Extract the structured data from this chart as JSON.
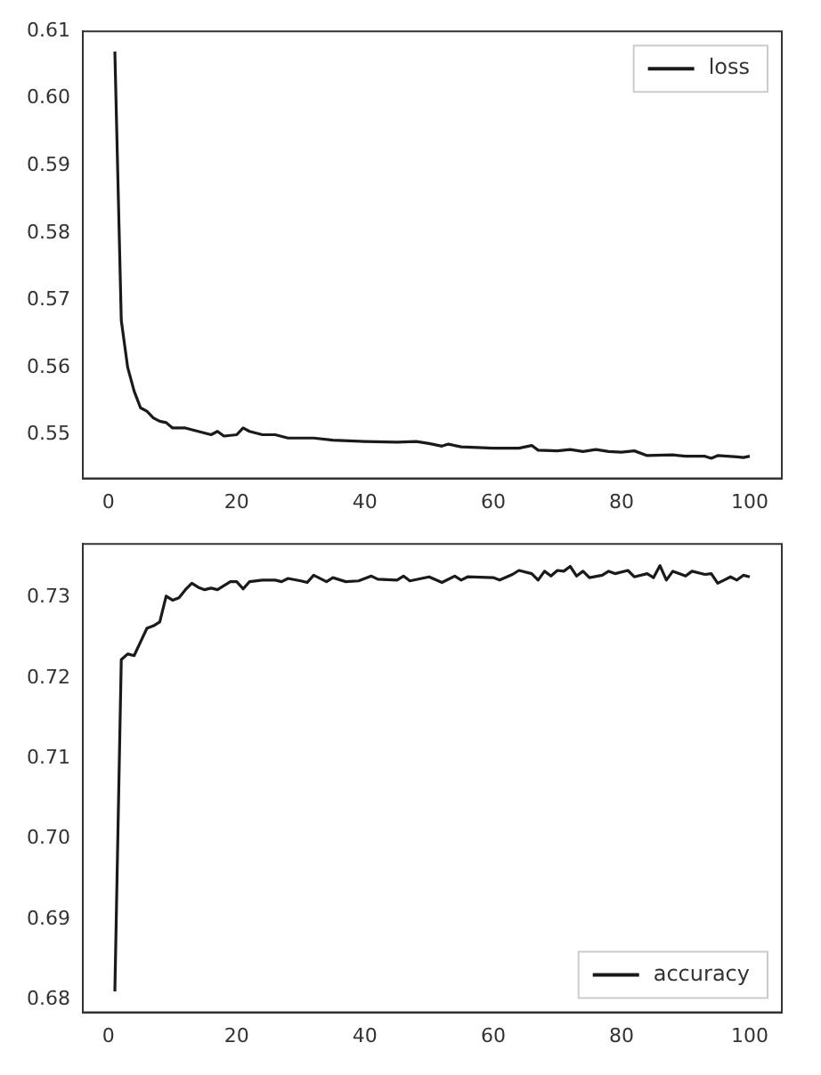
{
  "chart_data": [
    {
      "type": "line",
      "xlim": [
        -4,
        105
      ],
      "xticks": [
        0,
        20,
        40,
        60,
        80,
        100
      ],
      "ylim": [
        0.5435,
        0.61
      ],
      "yticks": [
        0.55,
        0.56,
        0.57,
        0.58,
        0.59,
        {
          "value": 0.6,
          "label": "0.60"
        },
        0.61
      ],
      "legend": "top right",
      "grid": false,
      "series": [
        {
          "name": "loss",
          "color": "#1a1a1a",
          "x": [
            1,
            2,
            3,
            4,
            5,
            6,
            7,
            8,
            9,
            10,
            12,
            14,
            16,
            17,
            18,
            20,
            21,
            22,
            24,
            26,
            28,
            30,
            32,
            35,
            40,
            45,
            48,
            50,
            52,
            53,
            55,
            60,
            64,
            66,
            67,
            70,
            72,
            74,
            76,
            78,
            80,
            82,
            84,
            88,
            90,
            93,
            94,
            95,
            98,
            99,
            100
          ],
          "values": [
            0.607,
            0.567,
            0.56,
            0.5565,
            0.554,
            0.5535,
            0.5525,
            0.552,
            0.5518,
            0.551,
            0.551,
            0.5505,
            0.55,
            0.5505,
            0.5498,
            0.55,
            0.551,
            0.5505,
            0.55,
            0.55,
            0.5495,
            0.5495,
            0.5495,
            0.5492,
            0.549,
            0.5489,
            0.549,
            0.5487,
            0.5483,
            0.5486,
            0.5482,
            0.548,
            0.548,
            0.5484,
            0.5477,
            0.5476,
            0.5478,
            0.5475,
            0.5478,
            0.5475,
            0.5474,
            0.5476,
            0.5469,
            0.547,
            0.5468,
            0.5468,
            0.5465,
            0.5469,
            0.5467,
            0.5466,
            0.5468
          ]
        }
      ]
    },
    {
      "type": "line",
      "xlim": [
        -4,
        105
      ],
      "xticks": [
        0,
        20,
        40,
        60,
        80,
        100
      ],
      "ylim": [
        0.6784,
        0.7367
      ],
      "yticks": [
        0.68,
        0.69,
        {
          "value": 0.7,
          "label": "0.70"
        },
        0.71,
        0.72,
        0.73
      ],
      "legend": "bottom right",
      "grid": false,
      "series": [
        {
          "name": "accuracy",
          "color": "#1a1a1a",
          "x": [
            1,
            2,
            3,
            4,
            5,
            6,
            7,
            8,
            9,
            10,
            11,
            12,
            13,
            14,
            15,
            16,
            17,
            18,
            19,
            20,
            21,
            22,
            24,
            26,
            27,
            28,
            30,
            31,
            32,
            34,
            35,
            37,
            39,
            41,
            42,
            45,
            46,
            47,
            50,
            52,
            54,
            55,
            56,
            60,
            61,
            63,
            64,
            66,
            67,
            68,
            69,
            70,
            71,
            72,
            73,
            74,
            75,
            77,
            78,
            79,
            81,
            82,
            84,
            85,
            86,
            87,
            88,
            90,
            91,
            93,
            94,
            95,
            96,
            97,
            98,
            99,
            100
          ],
          "values": [
            0.681,
            0.7223,
            0.723,
            0.7228,
            0.7245,
            0.7262,
            0.7265,
            0.727,
            0.7302,
            0.7297,
            0.73,
            0.731,
            0.7318,
            0.7313,
            0.731,
            0.7312,
            0.731,
            0.7315,
            0.732,
            0.732,
            0.7311,
            0.732,
            0.7322,
            0.7322,
            0.732,
            0.7324,
            0.7321,
            0.7319,
            0.7328,
            0.732,
            0.7325,
            0.732,
            0.7321,
            0.7327,
            0.7323,
            0.7322,
            0.7327,
            0.7321,
            0.7326,
            0.7319,
            0.7327,
            0.7322,
            0.7326,
            0.7325,
            0.7322,
            0.7329,
            0.7334,
            0.733,
            0.7322,
            0.7333,
            0.7327,
            0.7334,
            0.7333,
            0.7339,
            0.7327,
            0.7333,
            0.7325,
            0.7328,
            0.7333,
            0.733,
            0.7334,
            0.7326,
            0.733,
            0.7325,
            0.734,
            0.7322,
            0.7333,
            0.7327,
            0.7333,
            0.7329,
            0.733,
            0.7318,
            0.7322,
            0.7326,
            0.7322,
            0.7328,
            0.7326
          ]
        }
      ]
    }
  ]
}
